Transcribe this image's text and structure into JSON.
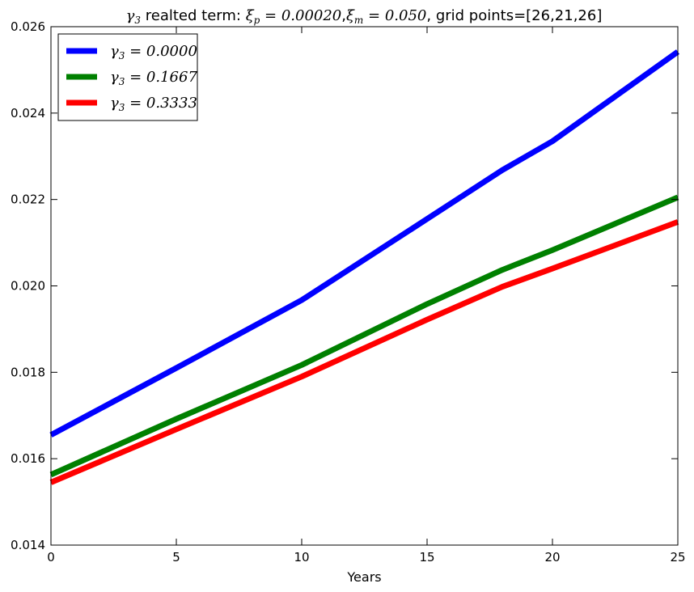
{
  "chart_data": {
    "type": "line",
    "title": {
      "gamma_symbol": "γ",
      "gamma_sub": "3",
      "text1": " realted term: ",
      "xi_p_symbol": "ξ",
      "xi_p_sub": "p",
      "xi_p_value": " = 0.00020",
      "sep": ",",
      "xi_m_symbol": "ξ",
      "xi_m_sub": "m",
      "xi_m_value": " = 0.050",
      "text2": ", grid points=[26,21,26]"
    },
    "xlabel": "Years",
    "ylabel": "",
    "xlim": [
      0,
      25
    ],
    "ylim": [
      0.014,
      0.026
    ],
    "xticks": [
      "0",
      "5",
      "10",
      "15",
      "20",
      "25"
    ],
    "yticks": [
      "0.014",
      "0.016",
      "0.018",
      "0.020",
      "0.022",
      "0.024",
      "0.026"
    ],
    "grid": false,
    "legend_position": "top-left",
    "x": [
      0,
      5,
      10,
      15,
      18,
      20,
      25
    ],
    "series": [
      {
        "name": "γ3 = 0.0000",
        "symbol": "γ",
        "sub": "3",
        "value": " = 0.0000",
        "color": "#0000ff",
        "values": [
          0.01655,
          0.0181,
          0.01967,
          0.02155,
          0.02268,
          0.02335,
          0.02542
        ]
      },
      {
        "name": "γ3 = 0.1667",
        "symbol": "γ",
        "sub": "3",
        "value": " = 0.1667",
        "color": "#008000",
        "values": [
          0.01563,
          0.01692,
          0.01817,
          0.01958,
          0.02037,
          0.02083,
          0.02205
        ]
      },
      {
        "name": "γ3 = 0.3333",
        "symbol": "γ",
        "sub": "3",
        "value": " = 0.3333",
        "color": "#ff0000",
        "values": [
          0.01545,
          0.01668,
          0.0179,
          0.01922,
          0.01998,
          0.0204,
          0.02148
        ]
      }
    ]
  }
}
